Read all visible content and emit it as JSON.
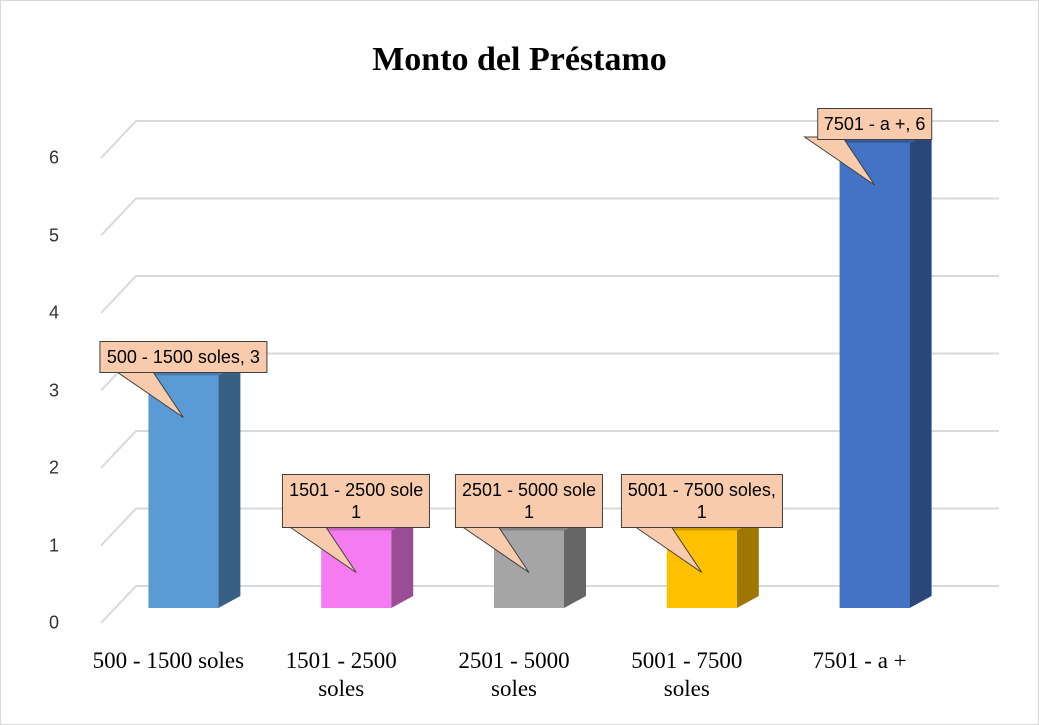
{
  "chart_data": {
    "type": "bar3d",
    "title": "Monto del Préstamo",
    "categories": [
      "500 - 1500 soles",
      "1501 - 2500 soles",
      "2501 - 5000 soles",
      "5001 - 7500 soles",
      "7501 - a +"
    ],
    "values": [
      3,
      1,
      1,
      1,
      6
    ],
    "value_labels": [
      "500 - 1500 soles, 3",
      "1501 - 2500 sole\n1",
      "2501 - 5000 sole\n1",
      "5001 - 7500 soles,\n1",
      "7501 - a +, 6"
    ],
    "colors": [
      "#5b9bd5",
      "#f57cf0",
      "#a5a5a5",
      "#ffc000",
      "#4472c4"
    ],
    "ylim": [
      0,
      6
    ],
    "yticks": [
      0,
      1,
      2,
      3,
      4,
      5,
      6
    ],
    "grid": true
  }
}
